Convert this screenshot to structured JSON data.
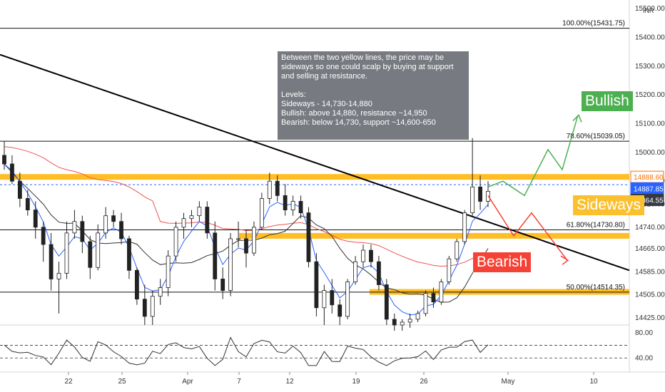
{
  "chart_data": {
    "type": "candlestick",
    "instrument_currency": "INR",
    "x_ticks": [
      "22",
      "25",
      "Apr",
      "7",
      "12",
      "19",
      "26",
      "May",
      "10"
    ],
    "y_ticks": [
      "15500.00",
      "15400.00",
      "15300.00",
      "15200.00",
      "15100.00",
      "15000.00",
      "14900.00",
      "14820.00",
      "14740.00",
      "14665.00",
      "14585.00",
      "14505.00",
      "14425.00"
    ],
    "y_range": [
      14400,
      15530
    ],
    "price_tags": [
      {
        "value": "14888.60",
        "color": "#ff6d00"
      },
      {
        "value": "14887.85",
        "color": "#2962ff"
      },
      {
        "value": "14864.55",
        "color": "#363a45"
      }
    ],
    "fib_levels": [
      {
        "label": "100.00%(15431.75)",
        "price": 15431.75
      },
      {
        "label": "78.60%(15039.05)",
        "price": 15039.05
      },
      {
        "label": "61.80%(14730.80)",
        "price": 14730.8
      },
      {
        "label": "50.00%(14514.35)",
        "price": 14514.35
      }
    ],
    "zones": [
      {
        "name": "resistance",
        "price": 14915,
        "color": "#ffb300"
      },
      {
        "name": "support",
        "price": 14710,
        "color": "#ffb300"
      },
      {
        "name": "lower support",
        "price": 14515,
        "color": "#ffb300"
      }
    ],
    "candles": [
      [
        14990,
        15040,
        14940,
        14960
      ],
      [
        14960,
        14990,
        14890,
        14900
      ],
      [
        14900,
        14930,
        14810,
        14840
      ],
      [
        14840,
        14870,
        14780,
        14800
      ],
      [
        14800,
        14830,
        14700,
        14740
      ],
      [
        14740,
        14760,
        14620,
        14680
      ],
      [
        14680,
        14720,
        14520,
        14560
      ],
      [
        14560,
        14620,
        14440,
        14580
      ],
      [
        14580,
        14760,
        14560,
        14720
      ],
      [
        14720,
        14800,
        14700,
        14760
      ],
      [
        14760,
        14780,
        14650,
        14690
      ],
      [
        14690,
        14710,
        14560,
        14600
      ],
      [
        14600,
        14750,
        14590,
        14720
      ],
      [
        14720,
        14810,
        14700,
        14780
      ],
      [
        14780,
        14800,
        14740,
        14760
      ],
      [
        14760,
        14790,
        14680,
        14700
      ],
      [
        14700,
        14710,
        14560,
        14590
      ],
      [
        14590,
        14600,
        14470,
        14490
      ],
      [
        14490,
        14540,
        14400,
        14430
      ],
      [
        14430,
        14520,
        14400,
        14500
      ],
      [
        14500,
        14560,
        14470,
        14530
      ],
      [
        14530,
        14660,
        14500,
        14640
      ],
      [
        14640,
        14760,
        14620,
        14740
      ],
      [
        14740,
        14790,
        14700,
        14770
      ],
      [
        14770,
        14800,
        14740,
        14780
      ],
      [
        14780,
        14830,
        14760,
        14810
      ],
      [
        14810,
        14830,
        14700,
        14720
      ],
      [
        14720,
        14760,
        14520,
        14560
      ],
      [
        14560,
        14600,
        14490,
        14520
      ],
      [
        14520,
        14720,
        14500,
        14700
      ],
      [
        14700,
        14760,
        14670,
        14700
      ],
      [
        14700,
        14730,
        14600,
        14650
      ],
      [
        14650,
        14760,
        14640,
        14740
      ],
      [
        14740,
        14860,
        14730,
        14840
      ],
      [
        14840,
        14930,
        14820,
        14900
      ],
      [
        14900,
        14920,
        14830,
        14850
      ],
      [
        14850,
        14890,
        14780,
        14800
      ],
      [
        14800,
        14850,
        14780,
        14830
      ],
      [
        14830,
        14850,
        14770,
        14790
      ],
      [
        14790,
        14810,
        14600,
        14620
      ],
      [
        14620,
        14650,
        14430,
        14460
      ],
      [
        14460,
        14540,
        14400,
        14520
      ],
      [
        14520,
        14560,
        14440,
        14470
      ],
      [
        14470,
        14490,
        14400,
        14430
      ],
      [
        14430,
        14560,
        14420,
        14550
      ],
      [
        14550,
        14640,
        14540,
        14620
      ],
      [
        14620,
        14680,
        14600,
        14660
      ],
      [
        14660,
        14680,
        14600,
        14620
      ],
      [
        14620,
        14640,
        14520,
        14540
      ],
      [
        14540,
        14560,
        14400,
        14420
      ],
      [
        14420,
        14440,
        14380,
        14400
      ],
      [
        14400,
        14420,
        14380,
        14410
      ],
      [
        14410,
        14440,
        14390,
        14420
      ],
      [
        14420,
        14450,
        14410,
        14440
      ],
      [
        14440,
        14520,
        14430,
        14510
      ],
      [
        14510,
        14530,
        14460,
        14480
      ],
      [
        14480,
        14560,
        14470,
        14550
      ],
      [
        14550,
        14640,
        14540,
        14630
      ],
      [
        14630,
        14700,
        14620,
        14690
      ],
      [
        14690,
        14800,
        14680,
        14790
      ],
      [
        14790,
        15050,
        14780,
        14880
      ],
      [
        14880,
        14920,
        14800,
        14830
      ],
      [
        14830,
        14900,
        14810,
        14865
      ]
    ],
    "annotation_note": "Between the two yellow lines, the price may be sideways so one could scalp by buying at support and selling at resistance.\n\nLevels:\nSideways - 14,730-14,880\nBullish: above 14,880, resistance ~14,950\nBearish: below 14,730, support ~14,600-650",
    "scenario_tags": {
      "bullish": "Bullish",
      "sideways": "Sideways",
      "bearish": "Bearish"
    },
    "oscillator": {
      "y_ticks": [
        "80.00",
        "40.00"
      ],
      "range": [
        20,
        90
      ]
    },
    "colors": {
      "up": "#26a69a",
      "down": "#ef5350",
      "candle": "#222222",
      "ema": "#ef5350",
      "sma": "#333333",
      "fast": "#2962ff",
      "bull_path": "#4caf50",
      "bear_path": "#f44336"
    }
  }
}
